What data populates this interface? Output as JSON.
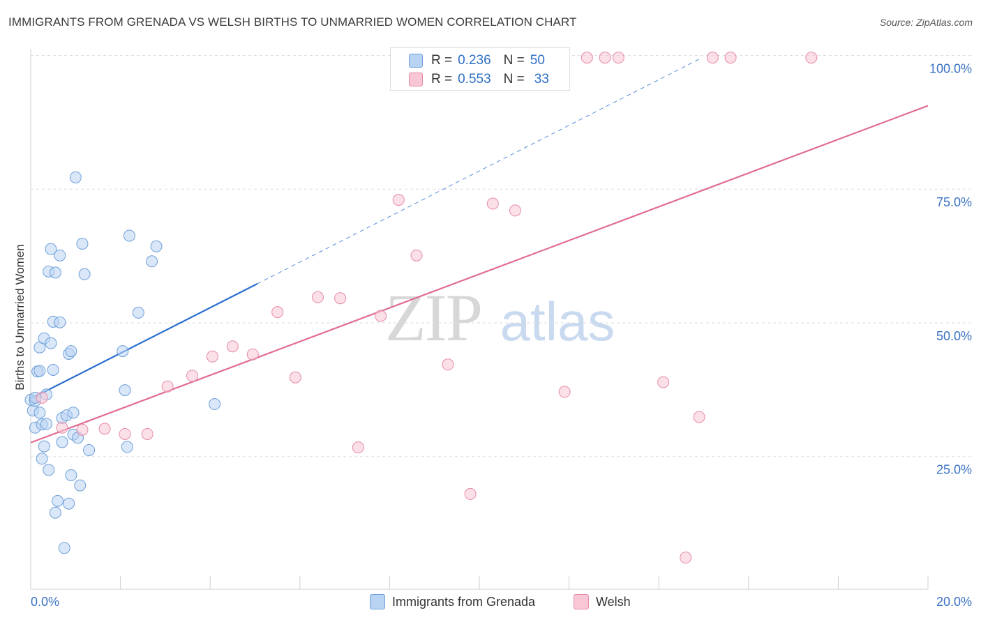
{
  "title": "IMMIGRANTS FROM GRENADA VS WELSH BIRTHS TO UNMARRIED WOMEN CORRELATION CHART",
  "source": "Source: ZipAtlas.com",
  "watermark": {
    "zip": "ZIP",
    "atlas": "atlas"
  },
  "legend": {
    "r_label": "R =",
    "n_label": "N =",
    "rows": [
      {
        "r": "0.236",
        "n": "50"
      },
      {
        "r": "0.553",
        "n": "33"
      }
    ]
  },
  "colors": {
    "blue_fill": "#b9d3f2",
    "blue_stroke": "#6e9fd9",
    "blue_line": "#2a6fcf",
    "pink_fill": "#f9c6d5",
    "pink_stroke": "#e58aa6",
    "pink_line": "#e06c94",
    "tick_text": "#3a72c4",
    "grid": "#dddddd"
  },
  "chart_data": {
    "type": "scatter",
    "title": "IMMIGRANTS FROM GRENADA VS WELSH BIRTHS TO UNMARRIED WOMEN CORRELATION CHART",
    "xlabel": "",
    "ylabel": "Births to Unmarried Women",
    "xlim": [
      0,
      20
    ],
    "ylim": [
      0,
      102
    ],
    "x_tick_labels": {
      "min": "0.0%",
      "max": "20.0%"
    },
    "y_ticks": [
      {
        "value": 25,
        "label": "25.0%"
      },
      {
        "value": 50,
        "label": "50.0%"
      },
      {
        "value": 75,
        "label": "75.0%"
      },
      {
        "value": 100,
        "label": "100.0%"
      }
    ],
    "series": [
      {
        "name": "Immigrants from Grenada",
        "color": "blue",
        "R": 0.236,
        "N": 50,
        "points": [
          [
            0.0,
            35.6
          ],
          [
            0.05,
            33.6
          ],
          [
            0.1,
            35.4
          ],
          [
            0.1,
            30.4
          ],
          [
            0.15,
            40.9
          ],
          [
            0.2,
            45.4
          ],
          [
            0.2,
            33.2
          ],
          [
            0.25,
            31.0
          ],
          [
            0.25,
            24.6
          ],
          [
            0.3,
            47.1
          ],
          [
            0.3,
            26.9
          ],
          [
            0.35,
            36.6
          ],
          [
            0.35,
            31.1
          ],
          [
            0.4,
            59.6
          ],
          [
            0.4,
            22.5
          ],
          [
            0.45,
            46.2
          ],
          [
            0.45,
            63.8
          ],
          [
            0.5,
            50.2
          ],
          [
            0.5,
            41.2
          ],
          [
            0.55,
            59.4
          ],
          [
            0.55,
            14.5
          ],
          [
            0.6,
            16.7
          ],
          [
            0.65,
            62.6
          ],
          [
            0.65,
            50.1
          ],
          [
            0.7,
            32.2
          ],
          [
            0.7,
            27.7
          ],
          [
            0.75,
            7.9
          ],
          [
            0.8,
            32.7
          ],
          [
            0.85,
            44.2
          ],
          [
            0.85,
            16.2
          ],
          [
            0.9,
            44.7
          ],
          [
            0.9,
            21.5
          ],
          [
            0.95,
            29.1
          ],
          [
            0.95,
            33.2
          ],
          [
            1.0,
            77.2
          ],
          [
            1.05,
            28.5
          ],
          [
            1.1,
            19.6
          ],
          [
            1.15,
            64.8
          ],
          [
            1.2,
            59.1
          ],
          [
            1.3,
            26.2
          ],
          [
            2.05,
            44.7
          ],
          [
            2.1,
            37.4
          ],
          [
            2.15,
            26.8
          ],
          [
            2.2,
            66.3
          ],
          [
            2.4,
            51.9
          ],
          [
            2.7,
            61.5
          ],
          [
            2.8,
            64.3
          ],
          [
            4.1,
            34.8
          ],
          [
            0.2,
            41.0
          ],
          [
            0.1,
            36.0
          ]
        ],
        "trendline": {
          "x": [
            0.0,
            5.05
          ],
          "y": [
            35.8,
            57.3
          ]
        },
        "trend_extension": {
          "x": [
            5.05,
            14.9
          ],
          "y": [
            57.3,
            99.3
          ]
        }
      },
      {
        "name": "Welsh",
        "color": "pink",
        "R": 0.553,
        "N": 33,
        "points": [
          [
            0.25,
            36.0
          ],
          [
            0.7,
            30.4
          ],
          [
            1.15,
            30.0
          ],
          [
            1.65,
            30.2
          ],
          [
            2.1,
            29.2
          ],
          [
            2.6,
            29.2
          ],
          [
            3.05,
            38.1
          ],
          [
            3.6,
            40.1
          ],
          [
            4.05,
            43.7
          ],
          [
            4.5,
            45.6
          ],
          [
            4.95,
            44.1
          ],
          [
            5.5,
            52.0
          ],
          [
            5.9,
            39.8
          ],
          [
            6.4,
            54.8
          ],
          [
            6.9,
            54.6
          ],
          [
            7.3,
            26.7
          ],
          [
            7.8,
            51.3
          ],
          [
            8.2,
            73.0
          ],
          [
            8.6,
            62.6
          ],
          [
            9.3,
            42.2
          ],
          [
            9.8,
            18.0
          ],
          [
            10.3,
            72.3
          ],
          [
            10.8,
            71.0
          ],
          [
            11.9,
            37.1
          ],
          [
            12.4,
            99.6
          ],
          [
            12.8,
            99.6
          ],
          [
            13.1,
            99.6
          ],
          [
            14.1,
            38.9
          ],
          [
            14.6,
            6.1
          ],
          [
            14.9,
            32.4
          ],
          [
            15.2,
            99.6
          ],
          [
            15.6,
            99.6
          ],
          [
            17.4,
            99.6
          ]
        ],
        "trendline": {
          "x": [
            0.0,
            20.0
          ],
          "y": [
            27.6,
            90.6
          ]
        }
      }
    ]
  },
  "bottom_legend": [
    {
      "label": "Immigrants from Grenada"
    },
    {
      "label": "Welsh"
    }
  ]
}
